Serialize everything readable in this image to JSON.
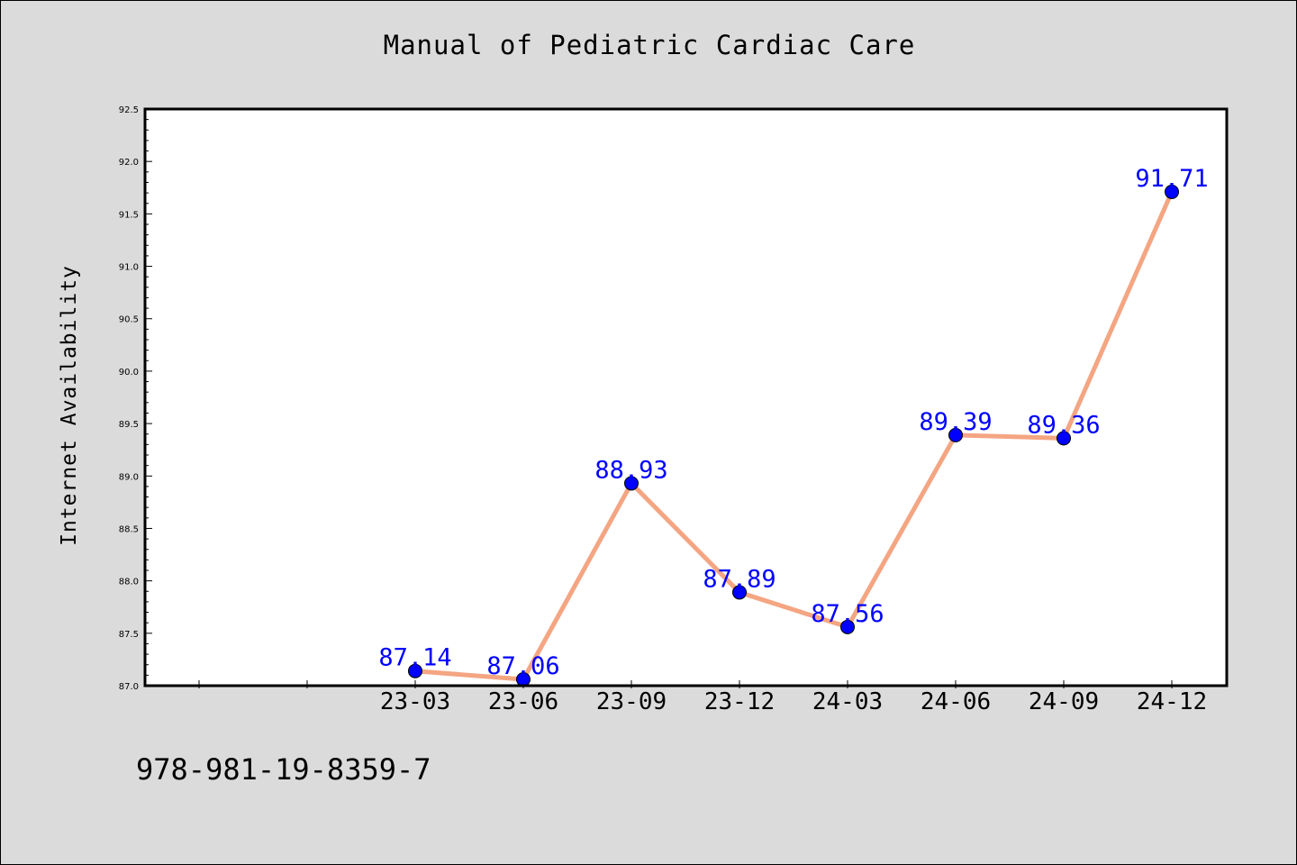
{
  "title": "Manual of Pediatric Cardiac Care",
  "isbn": "978-981-19-8359-7",
  "colors": {
    "background": "#dbdbdb",
    "plot_bg": "#ffffff",
    "line": "#f4a582",
    "marker": "#0000ff",
    "label": "#0000ff"
  },
  "chart_data": {
    "type": "line",
    "title": "Manual of Pediatric Cardiac Care",
    "xlabel": "",
    "ylabel": "Internet Availability",
    "categories": [
      "23-03",
      "23-06",
      "23-09",
      "23-12",
      "24-03",
      "24-06",
      "24-09",
      "24-12"
    ],
    "x_extra_ticks": 2,
    "series": [
      {
        "values": [
          87.14,
          87.06,
          88.93,
          87.89,
          87.56,
          89.39,
          89.36,
          91.71
        ],
        "labels": [
          "87.14",
          "87.06",
          "88.93",
          "87.89",
          "87.56",
          "89.39",
          "89.36",
          "91.71"
        ]
      }
    ],
    "ylim": [
      87.0,
      92.5
    ],
    "yticks": [
      "87.0",
      "87.5",
      "88.0",
      "88.5",
      "89.0",
      "89.5",
      "90.0",
      "90.5",
      "91.0",
      "91.5",
      "92.0",
      "92.5"
    ],
    "grid": false,
    "legend": "none"
  }
}
